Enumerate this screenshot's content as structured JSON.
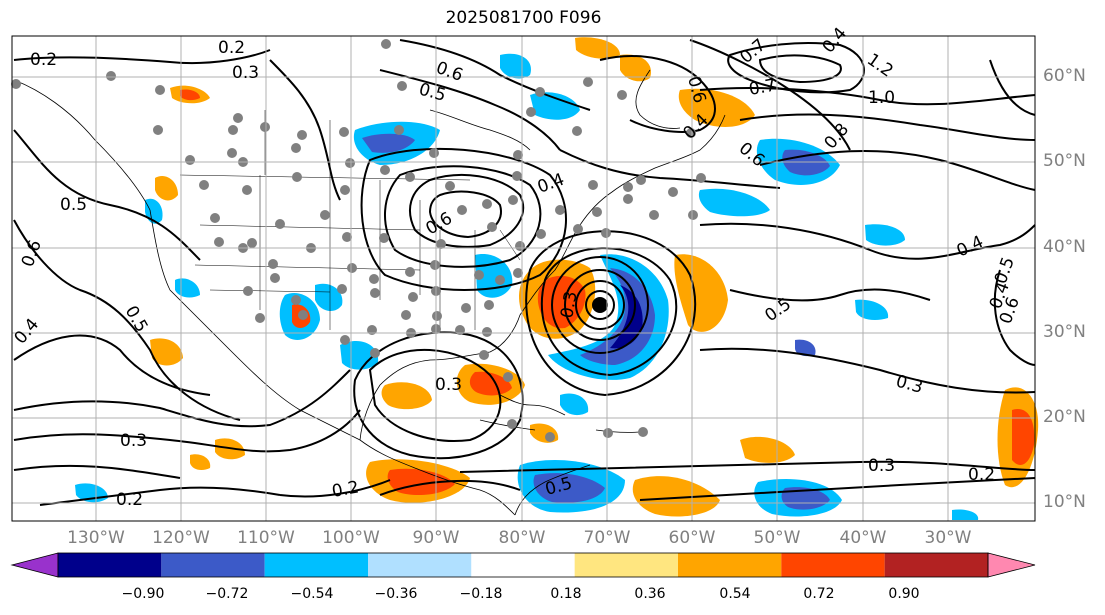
{
  "title": "2025081700 F096",
  "lon_labels": [
    "130°W",
    "120°W",
    "110°W",
    "100°W",
    "90°W",
    "80°W",
    "70°W",
    "60°W",
    "50°W",
    "40°W",
    "30°W"
  ],
  "lat_labels": [
    "60°N",
    "50°N",
    "40°N",
    "30°N",
    "20°N",
    "10°N"
  ],
  "colorbar": {
    "ticks": [
      "−0.90",
      "−0.72",
      "−0.54",
      "−0.36",
      "−0.18",
      "0.18",
      "0.36",
      "0.54",
      "0.72",
      "0.90"
    ],
    "colors": [
      "#9932cc",
      "#00008b",
      "#3c5ac8",
      "#00bfff",
      "#b0e0ff",
      "#ffffff",
      "#ffe680",
      "#ffa500",
      "#ff4500",
      "#b22222",
      "#ff88b0"
    ]
  },
  "contour_labels": [
    "0.2",
    "0.2",
    "0.3",
    "0.6",
    "0.5",
    "0.4",
    "0.4",
    "0.3",
    "1.2",
    "1.0",
    "0.7",
    "0.7",
    "0.6",
    "0.6",
    "0.8",
    "0.5",
    "0.5",
    "0.4",
    "0.6",
    "0.4",
    "0.5",
    "0.4",
    "0.3",
    "0.3",
    "0.3",
    "0.2",
    "0.2",
    "0.2",
    "0.5",
    "0.6",
    "0.3",
    "0.4",
    "0.5",
    "0.6"
  ],
  "colors": {
    "contour": "#000000",
    "axis_text": "#808080",
    "grid": "#b0b0b0"
  }
}
